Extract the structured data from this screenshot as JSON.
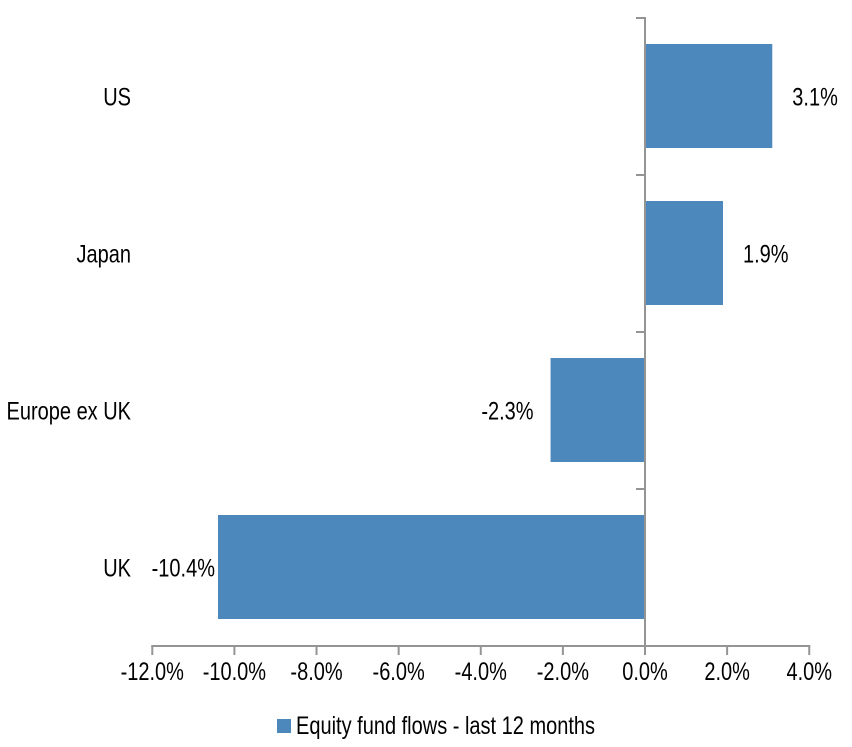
{
  "chart_data": {
    "type": "bar",
    "orientation": "horizontal",
    "title": "",
    "categories": [
      "US",
      "Japan",
      "Europe ex UK",
      "UK"
    ],
    "series": [
      {
        "name": "Equity fund flows - last 12 months",
        "values": [
          3.1,
          1.9,
          -2.3,
          -10.4
        ],
        "data_labels": [
          "3.1%",
          "1.9%",
          "-2.3%",
          "-10.4%"
        ],
        "color": "#4C88BC"
      }
    ],
    "xlim": [
      -12,
      4
    ],
    "x_ticks": [
      -12,
      -10,
      -8,
      -6,
      -4,
      -2,
      0,
      2,
      4
    ],
    "x_tick_labels": [
      "-12.0%",
      "-10.0%",
      "-8.0%",
      "-6.0%",
      "-4.0%",
      "-2.0%",
      "0.0%",
      "2.0%",
      "4.0%"
    ],
    "grid": false,
    "legend_position": "bottom",
    "colors": {
      "bar": "#4C88BC",
      "axis": "#949494",
      "text": "#000000",
      "background": "#FFFFFF"
    }
  },
  "legend": {
    "items": [
      {
        "label": "Equity fund flows - last 12 months",
        "color": "#4C88BC"
      }
    ]
  }
}
